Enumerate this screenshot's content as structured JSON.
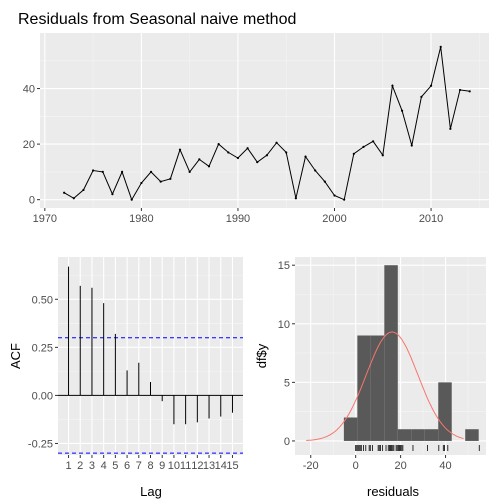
{
  "chart_data": [
    {
      "type": "line",
      "title": "Residuals from Seasonal naive method",
      "xlabel": "",
      "ylabel": "",
      "xlim": [
        1969.5,
        2016
      ],
      "ylim": [
        -3,
        60
      ],
      "xticks": [
        1970,
        1980,
        1990,
        2000,
        2010
      ],
      "yticks": [
        0,
        20,
        40
      ],
      "grid": true,
      "x": [
        1972,
        1973,
        1974,
        1975,
        1976,
        1977,
        1978,
        1979,
        1980,
        1981,
        1982,
        1983,
        1984,
        1985,
        1986,
        1987,
        1988,
        1989,
        1990,
        1991,
        1992,
        1993,
        1994,
        1995,
        1996,
        1997,
        1998,
        1999,
        2000,
        2001,
        2002,
        2003,
        2004,
        2005,
        2006,
        2007,
        2008,
        2009,
        2010,
        2011,
        2012,
        2013,
        2014
      ],
      "values": [
        2.5,
        0.5,
        3.5,
        10.5,
        10,
        2,
        10,
        0,
        6,
        10,
        6.5,
        7.5,
        18,
        10,
        14.5,
        12,
        20,
        17,
        15,
        18.5,
        13.5,
        16,
        20.5,
        17,
        0.5,
        15.5,
        10.5,
        6.5,
        1.5,
        0,
        16.5,
        19,
        21,
        16,
        41,
        32,
        19.5,
        37,
        41,
        55,
        25.5,
        39.5,
        39
      ]
    },
    {
      "type": "bar",
      "title": "",
      "xlabel": "Lag",
      "ylabel": "ACF",
      "xlim": [
        0.1,
        15.9
      ],
      "ylim": [
        -0.31,
        0.72
      ],
      "yticks": [
        -0.25,
        0,
        0.25,
        0.5
      ],
      "ytick_labels": [
        "-0.25",
        "0.00",
        "0.25",
        "0.50"
      ],
      "categories": [
        "1",
        "2",
        "3",
        "4",
        "5",
        "6",
        "7",
        "8",
        "9",
        "10",
        "11",
        "12",
        "13",
        "14",
        "15"
      ],
      "values": [
        0.67,
        0.57,
        0.56,
        0.48,
        0.32,
        0.13,
        0.17,
        0.07,
        -0.03,
        -0.15,
        -0.15,
        -0.14,
        -0.12,
        -0.11,
        -0.09
      ],
      "confidence_limits": [
        0.3,
        -0.3
      ],
      "grid": true
    },
    {
      "type": "bar",
      "title": "",
      "xlabel": "residuals",
      "ylabel": "df$y",
      "xlim": [
        -27,
        58
      ],
      "ylim": [
        -1.2,
        15.7
      ],
      "xticks": [
        -20,
        0,
        20,
        40
      ],
      "yticks": [
        0,
        5,
        10,
        15
      ],
      "bins": [
        {
          "start": -5.25,
          "end": 0.75,
          "count": 2
        },
        {
          "start": 0.75,
          "end": 6.75,
          "count": 9
        },
        {
          "start": 6.75,
          "end": 12.75,
          "count": 9
        },
        {
          "start": 12.75,
          "end": 18.75,
          "count": 15
        },
        {
          "start": 18.75,
          "end": 24.75,
          "count": 1
        },
        {
          "start": 24.75,
          "end": 30.75,
          "count": 1
        },
        {
          "start": 30.75,
          "end": 36.75,
          "count": 1
        },
        {
          "start": 36.75,
          "end": 42.75,
          "count": 5
        },
        {
          "start": 42.75,
          "end": 48.75,
          "count": 0
        },
        {
          "start": 48.75,
          "end": 54.75,
          "count": 1
        }
      ],
      "normal_curve": {
        "mean": 16.2,
        "sd": 11.5,
        "peak": 9.3,
        "from": -22,
        "to": 48,
        "color": "#f8766d"
      },
      "rug": [
        0,
        0.5,
        1,
        1.5,
        2,
        2.5,
        3.5,
        4.5,
        6,
        6.5,
        7.5,
        10,
        10.5,
        11,
        12,
        13.5,
        14.5,
        15,
        15.5,
        16,
        16.5,
        17,
        18,
        18.5,
        19,
        19.5,
        20,
        20.5,
        21,
        25.5,
        32,
        37,
        39,
        39.5,
        41,
        55
      ]
    }
  ]
}
